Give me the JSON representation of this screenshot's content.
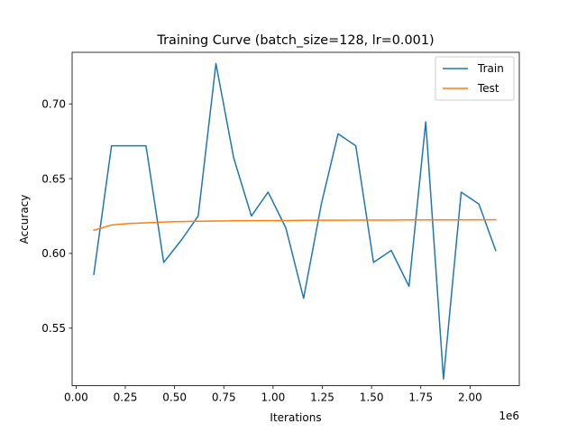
{
  "chart_data": {
    "type": "line",
    "title": "Training Curve (batch_size=128, lr=0.001)",
    "xlabel": "Iterations",
    "ylabel": "Accuracy",
    "x_offset_label": "1e6",
    "xlim": [
      -0.02,
      2.25
    ],
    "ylim": [
      0.5115,
      0.7345
    ],
    "xticks": [
      "0.00",
      "0.25",
      "0.50",
      "0.75",
      "1.00",
      "1.25",
      "1.50",
      "1.75",
      "2.00"
    ],
    "yticks": [
      "0.55",
      "0.60",
      "0.65",
      "0.70"
    ],
    "legend_position": "top-right",
    "grid": false,
    "series": [
      {
        "name": "Train",
        "color": "#1f77b4",
        "x": [
          0.09,
          0.18,
          0.27,
          0.355,
          0.445,
          0.535,
          0.62,
          0.71,
          0.8,
          0.89,
          0.975,
          1.065,
          1.155,
          1.245,
          1.33,
          1.42,
          1.51,
          1.6,
          1.69,
          1.775,
          1.865,
          1.955,
          2.045,
          2.13
        ],
        "y": [
          0.586,
          0.672,
          0.672,
          0.672,
          0.594,
          0.609,
          0.625,
          0.727,
          0.664,
          0.625,
          0.641,
          0.617,
          0.57,
          0.633,
          0.68,
          0.672,
          0.594,
          0.602,
          0.578,
          0.688,
          0.516,
          0.641,
          0.633,
          0.602
        ]
      },
      {
        "name": "Test",
        "color": "#ff7f0e",
        "x": [
          0.09,
          0.18,
          0.27,
          0.355,
          0.445,
          0.535,
          0.62,
          0.71,
          0.8,
          0.89,
          0.975,
          1.065,
          1.155,
          1.245,
          1.33,
          1.42,
          1.51,
          1.6,
          1.69,
          1.775,
          1.865,
          1.955,
          2.045,
          2.13
        ],
        "y": [
          0.6155,
          0.619,
          0.62,
          0.6205,
          0.621,
          0.6213,
          0.6215,
          0.6217,
          0.6218,
          0.6219,
          0.622,
          0.622,
          0.6221,
          0.6222,
          0.6222,
          0.6223,
          0.6223,
          0.6223,
          0.6224,
          0.6224,
          0.6224,
          0.6224,
          0.6225,
          0.6225
        ]
      }
    ]
  }
}
